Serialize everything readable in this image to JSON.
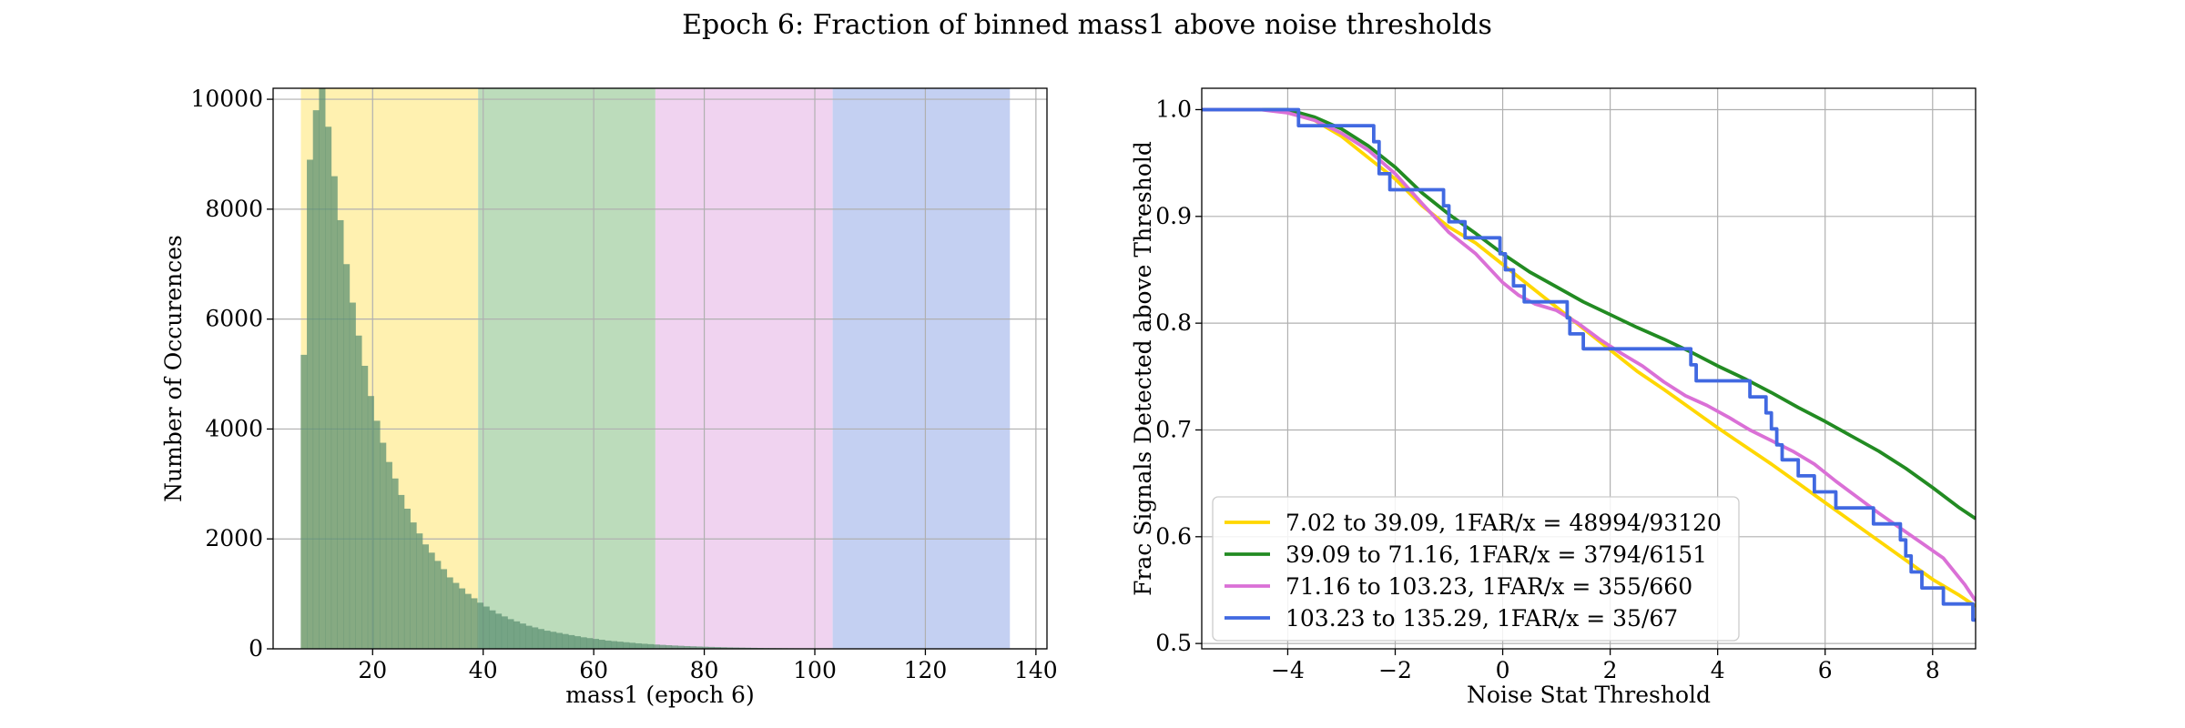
{
  "figure": {
    "title": "Epoch 6: Fraction of binned mass1 above noise thresholds"
  },
  "colors": {
    "band1": "#fff1b0",
    "band2": "#bcdcbb",
    "band3": "#f0d3f0",
    "band4": "#c4d0f2",
    "hist": "#5e9273",
    "hist_alpha": 0.75,
    "grid": "#b0b0b0",
    "yellow": "#ffd700",
    "green": "#228b22",
    "violet": "#da70d6",
    "blue": "#4169e1"
  },
  "chart_data": [
    {
      "type": "bar",
      "subtype": "histogram",
      "xlabel": "mass1 (epoch 6)",
      "ylabel": "Number of Occurences",
      "xlim": [
        2,
        142
      ],
      "ylim": [
        0,
        10200
      ],
      "xticks": [
        20,
        40,
        60,
        80,
        100,
        120,
        140
      ],
      "yticks": [
        0,
        2000,
        4000,
        6000,
        8000,
        10000
      ],
      "grid": true,
      "shaded_bins": [
        {
          "from": 7.02,
          "to": 39.09,
          "color_key": "band1"
        },
        {
          "from": 39.09,
          "to": 71.16,
          "color_key": "band2"
        },
        {
          "from": 71.16,
          "to": 103.23,
          "color_key": "band3"
        },
        {
          "from": 103.23,
          "to": 135.29,
          "color_key": "band4"
        }
      ],
      "bin_start": 7.0,
      "bin_width": 1.1,
      "counts": [
        5350,
        8900,
        9800,
        10250,
        9500,
        8600,
        7800,
        7000,
        6300,
        5700,
        5150,
        4600,
        4150,
        3750,
        3400,
        3100,
        2800,
        2550,
        2300,
        2100,
        1900,
        1750,
        1600,
        1450,
        1300,
        1200,
        1100,
        1000,
        920,
        840,
        770,
        700,
        640,
        590,
        540,
        500,
        460,
        420,
        390,
        360,
        330,
        310,
        290,
        270,
        250,
        230,
        210,
        195,
        180,
        165,
        150,
        140,
        130,
        120,
        110,
        100,
        92,
        85,
        78,
        72,
        66,
        60,
        55,
        50,
        46,
        42,
        38,
        35,
        32,
        29,
        26,
        24,
        22,
        20,
        18,
        16,
        14,
        13,
        12,
        11,
        10,
        9,
        8,
        7,
        6,
        5,
        5,
        4,
        4,
        3,
        3,
        3,
        2,
        2,
        2,
        2,
        1,
        1,
        1,
        1,
        1,
        1,
        1,
        1,
        1,
        1,
        1,
        1,
        1,
        1
      ]
    },
    {
      "type": "line",
      "xlabel": "Noise Stat Threshold",
      "ylabel": "Frac Signals Detected above Threshold",
      "xlim": [
        -5.6,
        8.8
      ],
      "ylim": [
        0.495,
        1.02
      ],
      "xticks": [
        -4,
        -2,
        0,
        2,
        4,
        6,
        8
      ],
      "xtick_labels": [
        "−4",
        "−2",
        "0",
        "2",
        "4",
        "6",
        "8"
      ],
      "yticks": [
        0.5,
        0.6,
        0.7,
        0.8,
        0.9,
        1.0
      ],
      "ytick_labels": [
        "0.5",
        "0.6",
        "0.7",
        "0.8",
        "0.9",
        "1.0"
      ],
      "grid": true,
      "legend_position": "lower-left",
      "series": [
        {
          "name": "7.02 to 39.09, 1FAR/x = 48994/93120",
          "color_key": "yellow",
          "step": false,
          "points": [
            [
              -5.6,
              1.0
            ],
            [
              -4.2,
              1.0
            ],
            [
              -3.5,
              0.99
            ],
            [
              -3.0,
              0.975
            ],
            [
              -2.5,
              0.955
            ],
            [
              -2.0,
              0.935
            ],
            [
              -1.5,
              0.91
            ],
            [
              -1.0,
              0.89
            ],
            [
              -0.5,
              0.875
            ],
            [
              0.0,
              0.855
            ],
            [
              0.5,
              0.835
            ],
            [
              1.0,
              0.815
            ],
            [
              1.5,
              0.795
            ],
            [
              2.0,
              0.775
            ],
            [
              2.5,
              0.755
            ],
            [
              3.0,
              0.738
            ],
            [
              3.5,
              0.72
            ],
            [
              4.0,
              0.702
            ],
            [
              4.5,
              0.685
            ],
            [
              5.0,
              0.668
            ],
            [
              5.5,
              0.65
            ],
            [
              6.0,
              0.632
            ],
            [
              6.5,
              0.614
            ],
            [
              7.0,
              0.596
            ],
            [
              7.5,
              0.578
            ],
            [
              8.0,
              0.56
            ],
            [
              8.5,
              0.545
            ],
            [
              8.8,
              0.535
            ]
          ]
        },
        {
          "name": "39.09 to 71.16, 1FAR/x = 3794/6151",
          "color_key": "green",
          "step": false,
          "points": [
            [
              -5.6,
              1.0
            ],
            [
              -4.0,
              1.0
            ],
            [
              -3.5,
              0.993
            ],
            [
              -3.0,
              0.982
            ],
            [
              -2.5,
              0.966
            ],
            [
              -2.0,
              0.946
            ],
            [
              -1.5,
              0.922
            ],
            [
              -1.0,
              0.902
            ],
            [
              -0.5,
              0.884
            ],
            [
              0.0,
              0.865
            ],
            [
              0.5,
              0.848
            ],
            [
              1.0,
              0.834
            ],
            [
              1.5,
              0.82
            ],
            [
              2.0,
              0.808
            ],
            [
              2.5,
              0.796
            ],
            [
              3.0,
              0.785
            ],
            [
              3.5,
              0.773
            ],
            [
              4.0,
              0.76
            ],
            [
              4.5,
              0.748
            ],
            [
              5.0,
              0.735
            ],
            [
              5.5,
              0.721
            ],
            [
              6.0,
              0.708
            ],
            [
              6.5,
              0.694
            ],
            [
              7.0,
              0.68
            ],
            [
              7.5,
              0.664
            ],
            [
              8.0,
              0.646
            ],
            [
              8.5,
              0.627
            ],
            [
              8.8,
              0.617
            ]
          ]
        },
        {
          "name": "71.16 to 103.23, 1FAR/x = 355/660",
          "color_key": "violet",
          "step": false,
          "points": [
            [
              -5.6,
              1.0
            ],
            [
              -4.5,
              1.0
            ],
            [
              -4.0,
              0.997
            ],
            [
              -3.5,
              0.99
            ],
            [
              -3.0,
              0.978
            ],
            [
              -2.5,
              0.962
            ],
            [
              -2.0,
              0.94
            ],
            [
              -1.5,
              0.912
            ],
            [
              -1.0,
              0.885
            ],
            [
              -0.5,
              0.865
            ],
            [
              0.0,
              0.838
            ],
            [
              0.3,
              0.826
            ],
            [
              0.6,
              0.818
            ],
            [
              1.0,
              0.812
            ],
            [
              1.4,
              0.8
            ],
            [
              1.8,
              0.785
            ],
            [
              2.2,
              0.772
            ],
            [
              2.6,
              0.76
            ],
            [
              3.0,
              0.745
            ],
            [
              3.4,
              0.732
            ],
            [
              3.8,
              0.723
            ],
            [
              4.2,
              0.712
            ],
            [
              4.6,
              0.7
            ],
            [
              5.0,
              0.69
            ],
            [
              5.4,
              0.68
            ],
            [
              5.8,
              0.668
            ],
            [
              6.2,
              0.652
            ],
            [
              6.6,
              0.637
            ],
            [
              7.0,
              0.622
            ],
            [
              7.4,
              0.608
            ],
            [
              7.8,
              0.594
            ],
            [
              8.2,
              0.58
            ],
            [
              8.6,
              0.555
            ],
            [
              8.8,
              0.54
            ]
          ]
        },
        {
          "name": "103.23 to 135.29, 1FAR/x = 35/67",
          "color_key": "blue",
          "step": true,
          "points": [
            [
              -5.6,
              1.0
            ],
            [
              -3.8,
              1.0
            ],
            [
              -3.8,
              0.985
            ],
            [
              -2.4,
              0.985
            ],
            [
              -2.4,
              0.97
            ],
            [
              -2.3,
              0.97
            ],
            [
              -2.3,
              0.94
            ],
            [
              -2.1,
              0.94
            ],
            [
              -2.1,
              0.925
            ],
            [
              -1.1,
              0.925
            ],
            [
              -1.1,
              0.91
            ],
            [
              -1.0,
              0.91
            ],
            [
              -1.0,
              0.895
            ],
            [
              -0.7,
              0.895
            ],
            [
              -0.7,
              0.88
            ],
            [
              -0.05,
              0.88
            ],
            [
              -0.05,
              0.865
            ],
            [
              0.05,
              0.865
            ],
            [
              0.05,
              0.85
            ],
            [
              0.2,
              0.85
            ],
            [
              0.2,
              0.835
            ],
            [
              0.4,
              0.835
            ],
            [
              0.4,
              0.82
            ],
            [
              1.2,
              0.82
            ],
            [
              1.2,
              0.805
            ],
            [
              1.25,
              0.805
            ],
            [
              1.25,
              0.79
            ],
            [
              1.5,
              0.79
            ],
            [
              1.5,
              0.776
            ],
            [
              3.5,
              0.776
            ],
            [
              3.5,
              0.761
            ],
            [
              3.6,
              0.761
            ],
            [
              3.6,
              0.746
            ],
            [
              4.6,
              0.746
            ],
            [
              4.6,
              0.731
            ],
            [
              4.9,
              0.731
            ],
            [
              4.9,
              0.716
            ],
            [
              5.0,
              0.716
            ],
            [
              5.0,
              0.701
            ],
            [
              5.1,
              0.701
            ],
            [
              5.1,
              0.686
            ],
            [
              5.2,
              0.686
            ],
            [
              5.2,
              0.672
            ],
            [
              5.5,
              0.672
            ],
            [
              5.5,
              0.657
            ],
            [
              5.8,
              0.657
            ],
            [
              5.8,
              0.642
            ],
            [
              6.2,
              0.642
            ],
            [
              6.2,
              0.627
            ],
            [
              6.9,
              0.627
            ],
            [
              6.9,
              0.612
            ],
            [
              7.4,
              0.612
            ],
            [
              7.4,
              0.597
            ],
            [
              7.5,
              0.597
            ],
            [
              7.5,
              0.582
            ],
            [
              7.6,
              0.582
            ],
            [
              7.6,
              0.567
            ],
            [
              7.8,
              0.567
            ],
            [
              7.8,
              0.552
            ],
            [
              8.2,
              0.552
            ],
            [
              8.2,
              0.537
            ],
            [
              8.75,
              0.537
            ],
            [
              8.75,
              0.522
            ],
            [
              8.8,
              0.522
            ]
          ]
        }
      ]
    }
  ]
}
